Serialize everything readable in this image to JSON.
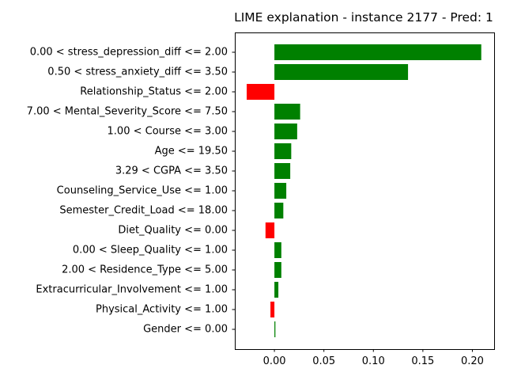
{
  "chart_data": {
    "type": "bar",
    "orientation": "horizontal",
    "title": "LIME explanation - instance 2177 - Pred: 1",
    "xlabel": "",
    "ylabel": "",
    "xlim": [
      -0.04,
      0.222
    ],
    "xticks": [
      0.0,
      0.05,
      0.1,
      0.15,
      0.2
    ],
    "xtick_labels": [
      "0.00",
      "0.05",
      "0.10",
      "0.15",
      "0.20"
    ],
    "grid": false,
    "colors": {
      "positive": "#008000",
      "negative": "#ff0000"
    },
    "categories": [
      "0.00 < stress_depression_diff <= 2.00",
      "0.50 < stress_anxiety_diff <= 3.50",
      "Relationship_Status <= 2.00",
      "7.00 < Mental_Severity_Score <= 7.50",
      "1.00 < Course <= 3.00",
      "Age <= 19.50",
      "3.29 < CGPA <= 3.50",
      "Counseling_Service_Use <= 1.00",
      "Semester_Credit_Load <= 18.00",
      "Diet_Quality <= 0.00",
      "0.00 < Sleep_Quality <= 1.00",
      "2.00 < Residence_Type <= 5.00",
      "Extracurricular_Involvement <= 1.00",
      "Physical_Activity <= 1.00",
      "Gender <= 0.00"
    ],
    "values": [
      0.209,
      0.135,
      -0.028,
      0.026,
      0.023,
      0.017,
      0.016,
      0.012,
      0.009,
      -0.009,
      0.007,
      0.007,
      0.004,
      -0.004,
      0.001
    ]
  }
}
